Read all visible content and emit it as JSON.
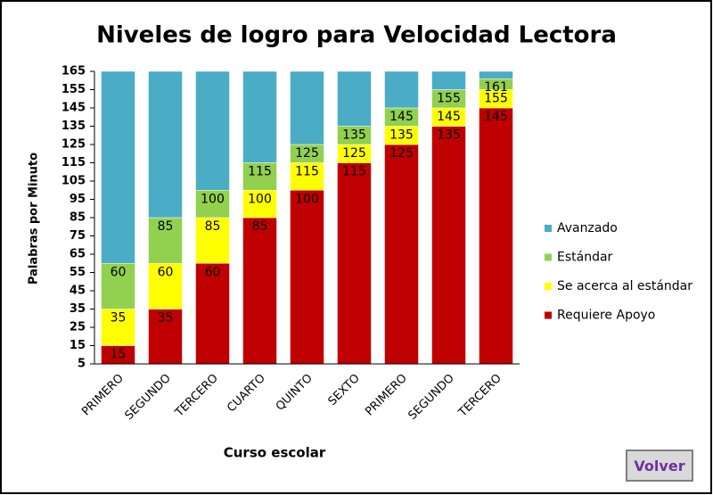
{
  "chart_data": {
    "type": "range-bar",
    "title": "Niveles de logro para Velocidad Lectora",
    "x_label": "Curso escolar",
    "y_label": "Palabras por Minuto",
    "categories": [
      "PRIMERO",
      "SEGUNDO",
      "TERCERO",
      "CUARTO",
      "QUINTO",
      "SEXTO",
      "PRIMERO",
      "SEGUNDO",
      "TERCERO"
    ],
    "series": [
      {
        "name": "Requiere Apoyo",
        "color": "#c00000",
        "values": [
          15,
          35,
          60,
          85,
          100,
          115,
          125,
          135,
          145
        ],
        "data_labels": true
      },
      {
        "name": "Se acerca al estándar",
        "color": "#ffff00",
        "values": [
          35,
          60,
          85,
          100,
          115,
          125,
          135,
          145,
          155
        ],
        "data_labels": true
      },
      {
        "name": "Estándar",
        "color": "#92d050",
        "values": [
          60,
          85,
          100,
          115,
          125,
          135,
          145,
          155,
          161
        ],
        "data_labels": true
      },
      {
        "name": "Avanzado",
        "color": "#4bacc6",
        "values": [
          165,
          165,
          165,
          165,
          165,
          165,
          165,
          165,
          165
        ],
        "data_labels": false
      }
    ],
    "ylim": [
      5,
      165
    ],
    "yticks": [
      5,
      15,
      25,
      35,
      45,
      55,
      65,
      75,
      85,
      95,
      105,
      115,
      125,
      135,
      145,
      155,
      165
    ],
    "legend": "right"
  },
  "button": {
    "label": "Volver"
  }
}
